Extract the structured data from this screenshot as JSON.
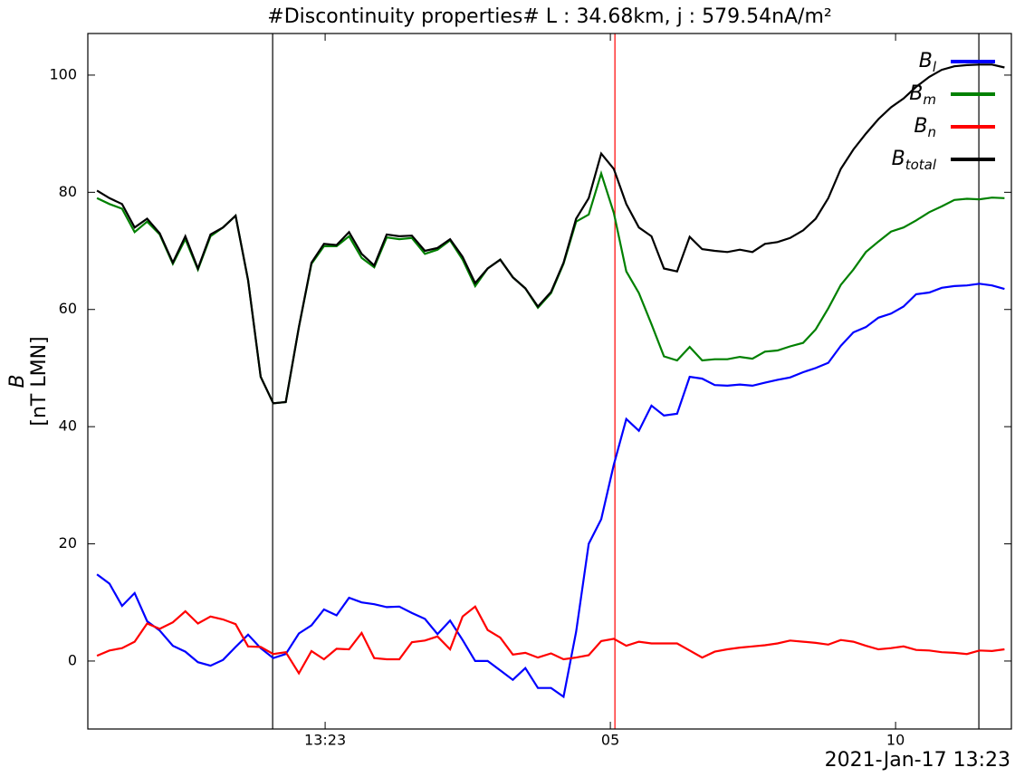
{
  "chart_data": {
    "type": "line",
    "title": "#Discontinuity properties# L : 34.68km, j : 579.54nA/m²",
    "ylabel": [
      "B",
      "[nT LMN]"
    ],
    "date_label": "2021-Jan-17 13:23",
    "xlim": [
      -4.16,
      12.03
    ],
    "ylim": [
      -11.6,
      107.1
    ],
    "xticks": [
      {
        "value": 0,
        "label": "13:23"
      },
      {
        "value": 5,
        "label": "05"
      },
      {
        "value": 10,
        "label": "10"
      }
    ],
    "yticks": [
      0,
      20,
      40,
      60,
      80,
      100
    ],
    "legend": "upper right",
    "vlines": [
      {
        "x": -0.92,
        "color": "#000000"
      },
      {
        "x": 5.08,
        "color": "#ff0000"
      },
      {
        "x": 11.46,
        "color": "#000000"
      }
    ],
    "x": [
      -4.0,
      -3.78,
      -3.56,
      -3.34,
      -3.12,
      -2.9,
      -2.67,
      -2.45,
      -2.23,
      -2.01,
      -1.79,
      -1.57,
      -1.35,
      -1.13,
      -0.91,
      -0.69,
      -0.46,
      -0.24,
      -0.02,
      0.2,
      0.42,
      0.64,
      0.86,
      1.08,
      1.3,
      1.52,
      1.75,
      1.97,
      2.19,
      2.41,
      2.63,
      2.85,
      3.07,
      3.29,
      3.51,
      3.73,
      3.96,
      4.18,
      4.4,
      4.62,
      4.84,
      5.06,
      5.28,
      5.5,
      5.72,
      5.94,
      6.17,
      6.39,
      6.61,
      6.83,
      7.05,
      7.27,
      7.49,
      7.71,
      7.93,
      8.15,
      8.38,
      8.6,
      8.82,
      9.04,
      9.26,
      9.48,
      9.7,
      9.92,
      10.14,
      10.36,
      10.59,
      10.81,
      11.03,
      11.25,
      11.47,
      11.69,
      11.91
    ],
    "series": [
      {
        "name": "Bl",
        "color": "#0000ff",
        "values": [
          14.8,
          13.2,
          9.4,
          11.6,
          6.8,
          5.2,
          2.6,
          1.6,
          -0.2,
          -0.8,
          0.2,
          2.4,
          4.5,
          2.2,
          0.5,
          1.2,
          4.7,
          6.1,
          8.8,
          7.8,
          10.8,
          10,
          9.7,
          9.2,
          9.3,
          8.2,
          7.2,
          4.6,
          6.9,
          3.6,
          0,
          0,
          -1.6,
          -3.2,
          -1.2,
          -4.6,
          -4.6,
          -6.1,
          5,
          20,
          24.2,
          33.5,
          41.3,
          39.3,
          43.6,
          41.9,
          42.2,
          48.5,
          48.2,
          47.1,
          47,
          47.2,
          47,
          47.5,
          48,
          48.4,
          49.3,
          50,
          50.9,
          53.8,
          56.1,
          57,
          58.6,
          59.3,
          60.5,
          62.6,
          62.9,
          63.7,
          64,
          64.1,
          64.4,
          64.1,
          63.5
        ]
      },
      {
        "name": "Bm",
        "color": "#008000",
        "values": [
          79,
          78,
          77.2,
          73.2,
          75,
          72.8,
          67.8,
          72,
          66.8,
          72.5,
          74,
          76,
          65,
          48.5,
          44,
          44.2,
          57,
          67.8,
          70.8,
          70.8,
          72.5,
          68.8,
          67.2,
          72.3,
          72,
          72.2,
          69.5,
          70.2,
          71.8,
          68.5,
          64,
          67,
          68.5,
          65.5,
          63.6,
          60.3,
          62.8,
          67.8,
          75,
          76.2,
          83.2,
          76.5,
          66.5,
          62.8,
          57.5,
          52,
          51.3,
          53.6,
          51.3,
          51.5,
          51.5,
          51.9,
          51.6,
          52.8,
          53,
          53.7,
          54.3,
          56.6,
          60.2,
          64.2,
          66.8,
          69.8,
          71.6,
          73.3,
          74,
          75.2,
          76.6,
          77.6,
          78.7,
          78.9,
          78.8,
          79.1,
          79
        ]
      },
      {
        "name": "Bn",
        "color": "#ff0000",
        "values": [
          0.9,
          1.8,
          2.2,
          3.3,
          6.4,
          5.5,
          6.6,
          8.5,
          6.4,
          7.6,
          7.1,
          6.3,
          2.5,
          2.4,
          1.2,
          1.5,
          -2.1,
          1.7,
          0.3,
          2.1,
          2,
          4.8,
          0.5,
          0.3,
          0.3,
          3.2,
          3.5,
          4.2,
          2,
          7.6,
          9.3,
          5.3,
          4,
          1.1,
          1.4,
          0.6,
          1.3,
          0.3,
          0.6,
          1,
          3.4,
          3.8,
          2.6,
          3.3,
          3,
          3,
          3,
          1.8,
          0.6,
          1.6,
          2,
          2.3,
          2.5,
          2.7,
          3,
          3.5,
          3.3,
          3.1,
          2.8,
          3.6,
          3.3,
          2.6,
          2,
          2.2,
          2.5,
          1.9,
          1.8,
          1.5,
          1.4,
          1.2,
          1.8,
          1.7,
          2
        ]
      },
      {
        "name": "Btotal",
        "color": "#000000",
        "values": [
          80.3,
          79,
          78,
          74,
          75.5,
          73,
          68,
          72.5,
          67,
          72.8,
          74,
          76,
          65,
          48.5,
          44,
          44.2,
          57,
          68,
          71.2,
          71,
          73.2,
          69.5,
          67.5,
          72.8,
          72.5,
          72.6,
          70,
          70.5,
          72,
          69,
          64.5,
          67,
          68.5,
          65.5,
          63.6,
          60.5,
          63,
          68,
          75.5,
          79,
          86.6,
          84,
          78,
          74,
          72.5,
          67,
          66.5,
          72.4,
          70.3,
          70,
          69.8,
          70.2,
          69.8,
          71.2,
          71.5,
          72.2,
          73.5,
          75.5,
          79,
          84,
          87.3,
          90,
          92.5,
          94.5,
          96,
          98,
          99.7,
          100.9,
          101.5,
          101.7,
          101.8,
          101.8,
          101.3
        ]
      }
    ]
  }
}
